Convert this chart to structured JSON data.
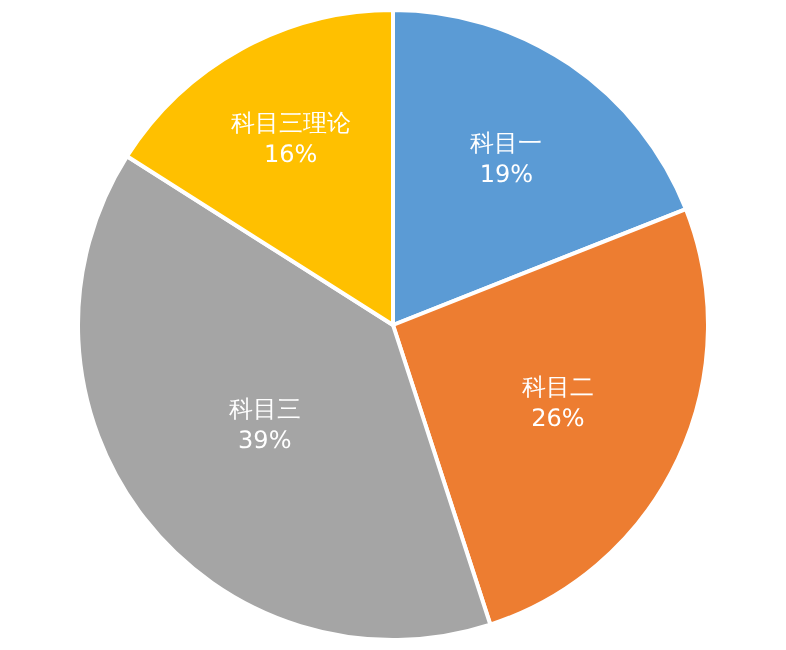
{
  "chart_data": {
    "type": "pie",
    "categories": [
      "科目一",
      "科目二",
      "科目三",
      "科目三理论"
    ],
    "values": [
      19,
      26,
      39,
      16
    ],
    "value_labels": [
      "19%",
      "26%",
      "39%",
      "16%"
    ],
    "colors": [
      "#5b9bd5",
      "#ed7d31",
      "#a5a5a5",
      "#ffc000"
    ],
    "legend": false
  }
}
